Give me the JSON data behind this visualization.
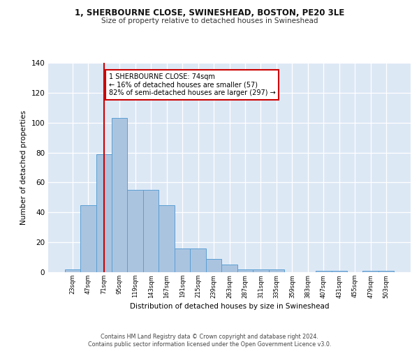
{
  "title1": "1, SHERBOURNE CLOSE, SWINESHEAD, BOSTON, PE20 3LE",
  "title2": "Size of property relative to detached houses in Swineshead",
  "xlabel": "Distribution of detached houses by size in Swineshead",
  "ylabel": "Number of detached properties",
  "categories": [
    "23sqm",
    "47sqm",
    "71sqm",
    "95sqm",
    "119sqm",
    "143sqm",
    "167sqm",
    "191sqm",
    "215sqm",
    "239sqm",
    "263sqm",
    "287sqm",
    "311sqm",
    "335sqm",
    "359sqm",
    "383sqm",
    "407sqm",
    "431sqm",
    "455sqm",
    "479sqm",
    "503sqm"
  ],
  "values": [
    2,
    45,
    79,
    103,
    55,
    55,
    45,
    16,
    16,
    9,
    5,
    2,
    2,
    2,
    0,
    0,
    1,
    1,
    0,
    1,
    1
  ],
  "bar_color": "#aac4e0",
  "bar_edge_color": "#5a9fd4",
  "background_color": "#dde8f5",
  "grid_color": "#ffffff",
  "vline_x": 2,
  "vline_color": "#cc0000",
  "annotation_text": "1 SHERBOURNE CLOSE: 74sqm\n← 16% of detached houses are smaller (57)\n82% of semi-detached houses are larger (297) →",
  "annotation_box_color": "#ffffff",
  "annotation_box_edge": "#cc0000",
  "footer": "Contains HM Land Registry data © Crown copyright and database right 2024.\nContains public sector information licensed under the Open Government Licence v3.0.",
  "ylim": [
    0,
    140
  ],
  "yticks": [
    0,
    20,
    40,
    60,
    80,
    100,
    120,
    140
  ]
}
